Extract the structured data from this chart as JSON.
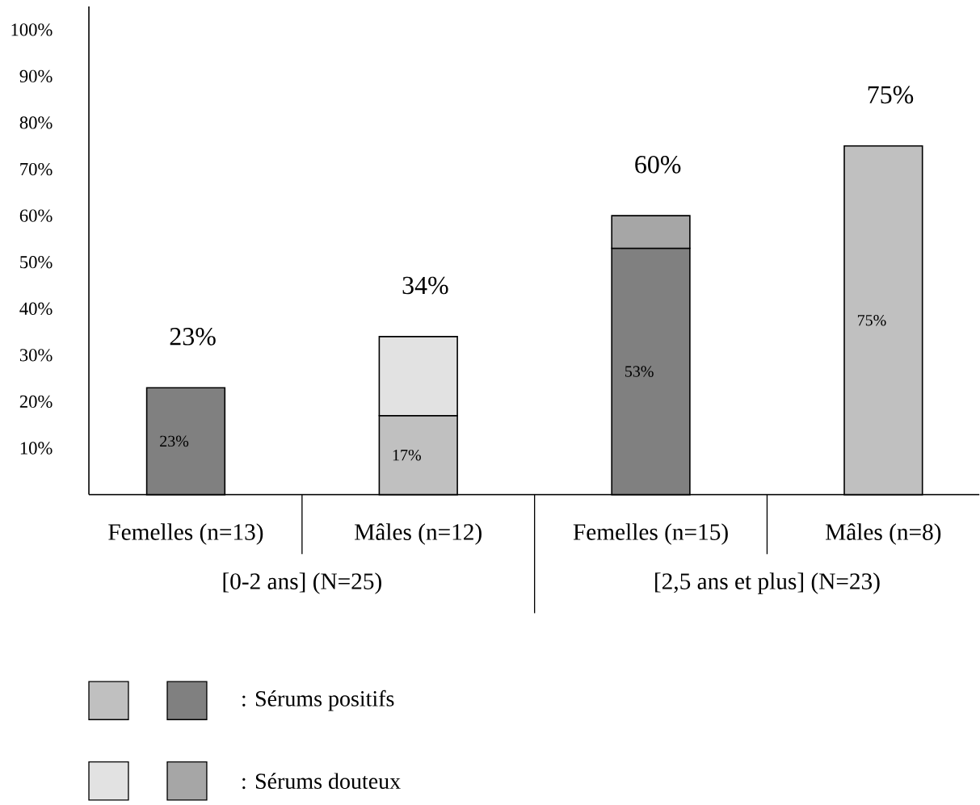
{
  "chart_data": {
    "type": "bar",
    "stacked": true,
    "categories": [
      "Femelles (n=13)",
      "Mâles (n=12)",
      "Femelles (n=15)",
      "Mâles (n=8)"
    ],
    "series": [
      {
        "name": ": Sérums positifs",
        "colors": [
          "#808080",
          "#c0c0c0",
          "#808080",
          "#c0c0c0"
        ],
        "values": [
          23,
          17,
          53,
          75
        ],
        "value_labels": [
          "23%",
          "17%",
          "53%",
          "75%"
        ]
      },
      {
        "name": ": Sérums douteux",
        "colors": [
          "#a6a6a6",
          "#e2e2e2",
          "#a6a6a6",
          "#e2e2e2"
        ],
        "values": [
          null,
          17,
          7,
          null
        ]
      }
    ],
    "totals": [
      "23%",
      "34%",
      "60%",
      "75%"
    ],
    "annotations": [
      "[0-2 ans] (N=25)",
      "[2,5 ans et plus] (N=23)"
    ],
    "ylim": [
      0,
      105
    ],
    "yticks": [
      {
        "value": 10,
        "label": "10%"
      },
      {
        "value": 20,
        "label": "20%"
      },
      {
        "value": 30,
        "label": "30%"
      },
      {
        "value": 40,
        "label": "40%"
      },
      {
        "value": 50,
        "label": "50%"
      },
      {
        "value": 60,
        "label": "60%"
      },
      {
        "value": 70,
        "label": "70%"
      },
      {
        "value": 80,
        "label": "80%"
      },
      {
        "value": 90,
        "label": "90%"
      },
      {
        "value": 100,
        "label": "100%"
      }
    ],
    "legend": "bottom"
  }
}
